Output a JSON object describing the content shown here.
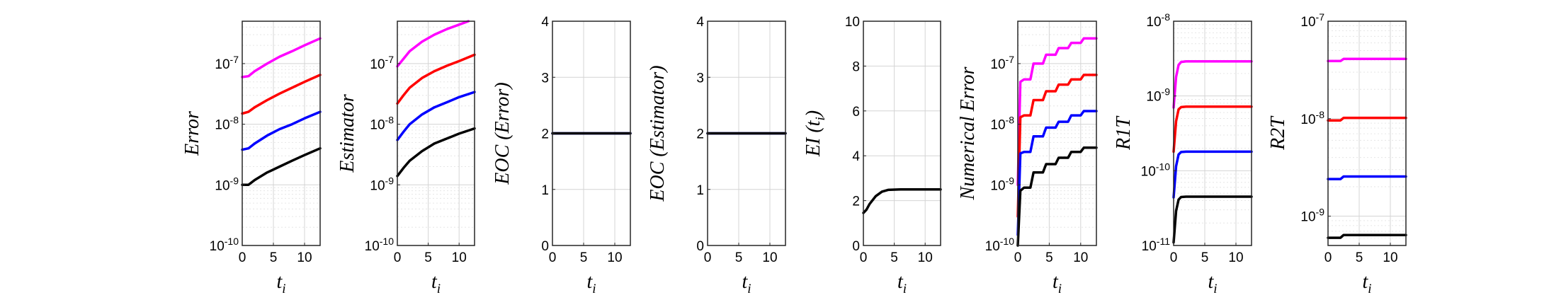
{
  "colors": {
    "magenta": "#ff00ff",
    "red": "#ff0000",
    "blue": "#0000ff",
    "black": "#000000"
  },
  "chart_data": [
    {
      "type": "line",
      "title": "",
      "xlabel": "t_i",
      "ylabel": "Error",
      "yscale": "log",
      "xlim": [
        0,
        12.5
      ],
      "ylim": [
        1e-10,
        5e-07
      ],
      "xticks": [
        0,
        5,
        10
      ],
      "xtick_labels": [
        "0",
        "5",
        "10"
      ],
      "yticks": [
        1e-10,
        1e-09,
        1e-08,
        1e-07
      ],
      "ytick_labels": [
        "10^-10",
        "10^-9",
        "10^-8",
        "10^-7"
      ],
      "grid": true,
      "series": [
        {
          "color": "magenta",
          "x": [
            0,
            1,
            2,
            4,
            6,
            8,
            10,
            12.5
          ],
          "values": [
            6e-08,
            6.2e-08,
            7.5e-08,
            1e-07,
            1.3e-07,
            1.6e-07,
            2e-07,
            2.6e-07
          ]
        },
        {
          "color": "red",
          "x": [
            0,
            1,
            2,
            4,
            6,
            8,
            10,
            12.5
          ],
          "values": [
            1.5e-08,
            1.6e-08,
            1.9e-08,
            2.5e-08,
            3.2e-08,
            4e-08,
            5e-08,
            6.5e-08
          ]
        },
        {
          "color": "blue",
          "x": [
            0,
            1,
            2,
            4,
            6,
            8,
            10,
            12.5
          ],
          "values": [
            3.8e-09,
            4e-09,
            4.8e-09,
            6.5e-09,
            8.3e-09,
            1e-08,
            1.25e-08,
            1.6e-08
          ]
        },
        {
          "color": "black",
          "x": [
            0,
            1,
            2,
            4,
            6,
            8,
            10,
            12.5
          ],
          "values": [
            1e-09,
            1e-09,
            1.2e-09,
            1.6e-09,
            2e-09,
            2.5e-09,
            3.1e-09,
            4e-09
          ]
        }
      ]
    },
    {
      "type": "line",
      "title": "",
      "xlabel": "t_i",
      "ylabel": "Estimator",
      "yscale": "log",
      "xlim": [
        0,
        12.5
      ],
      "ylim": [
        1e-10,
        5e-07
      ],
      "xticks": [
        0,
        5,
        10
      ],
      "xtick_labels": [
        "0",
        "5",
        "10"
      ],
      "yticks": [
        1e-10,
        1e-09,
        1e-08,
        1e-07
      ],
      "ytick_labels": [
        "10^-10",
        "10^-9",
        "10^-8",
        "10^-7"
      ],
      "grid": true,
      "series": [
        {
          "color": "magenta",
          "x": [
            0,
            1,
            2,
            4,
            6,
            8,
            10,
            11.5
          ],
          "values": [
            9e-08,
            1.2e-07,
            1.6e-07,
            2.3e-07,
            3e-07,
            3.7e-07,
            4.4e-07,
            5e-07
          ]
        },
        {
          "color": "red",
          "x": [
            0,
            1,
            2,
            4,
            6,
            8,
            10,
            12.5
          ],
          "values": [
            2.2e-08,
            3e-08,
            4e-08,
            5.8e-08,
            7.5e-08,
            9.2e-08,
            1.1e-07,
            1.4e-07
          ]
        },
        {
          "color": "blue",
          "x": [
            0,
            1,
            2,
            4,
            6,
            8,
            10,
            12.5
          ],
          "values": [
            5.5e-09,
            7.5e-09,
            1e-08,
            1.45e-08,
            1.9e-08,
            2.3e-08,
            2.8e-08,
            3.4e-08
          ]
        },
        {
          "color": "black",
          "x": [
            0,
            1,
            2,
            4,
            6,
            8,
            10,
            12.5
          ],
          "values": [
            1.4e-09,
            1.9e-09,
            2.5e-09,
            3.6e-09,
            4.8e-09,
            5.8e-09,
            7e-09,
            8.5e-09
          ]
        }
      ]
    },
    {
      "type": "line",
      "title": "",
      "xlabel": "t_i",
      "ylabel": "EOC (Error)",
      "yscale": "linear",
      "xlim": [
        0,
        12.5
      ],
      "ylim": [
        0,
        4
      ],
      "xticks": [
        0,
        5,
        10
      ],
      "xtick_labels": [
        "0",
        "5",
        "10"
      ],
      "yticks": [
        0,
        1,
        2,
        3,
        4
      ],
      "ytick_labels": [
        "0",
        "1",
        "2",
        "3",
        "4"
      ],
      "grid": true,
      "series": [
        {
          "color": "blue",
          "x": [
            0,
            12.5
          ],
          "values": [
            2,
            2
          ]
        },
        {
          "color": "black",
          "x": [
            0,
            12.5
          ],
          "values": [
            2,
            2
          ]
        }
      ]
    },
    {
      "type": "line",
      "title": "",
      "xlabel": "t_i",
      "ylabel": "EOC (Estimator)",
      "yscale": "linear",
      "xlim": [
        0,
        12.5
      ],
      "ylim": [
        0,
        4
      ],
      "xticks": [
        0,
        5,
        10
      ],
      "xtick_labels": [
        "0",
        "5",
        "10"
      ],
      "yticks": [
        0,
        1,
        2,
        3,
        4
      ],
      "ytick_labels": [
        "0",
        "1",
        "2",
        "3",
        "4"
      ],
      "grid": true,
      "series": [
        {
          "color": "blue",
          "x": [
            0,
            12.5
          ],
          "values": [
            2,
            2
          ]
        },
        {
          "color": "black",
          "x": [
            0,
            12.5
          ],
          "values": [
            2,
            2
          ]
        }
      ]
    },
    {
      "type": "line",
      "title": "",
      "xlabel": "t_i",
      "ylabel": "EI (t_i)",
      "yscale": "linear",
      "xlim": [
        0,
        12.5
      ],
      "ylim": [
        0,
        10
      ],
      "xticks": [
        0,
        5,
        10
      ],
      "xtick_labels": [
        "0",
        "5",
        "10"
      ],
      "yticks": [
        0,
        2,
        4,
        6,
        8,
        10
      ],
      "ytick_labels": [
        "0",
        "2",
        "4",
        "6",
        "8",
        "10"
      ],
      "grid": true,
      "series": [
        {
          "color": "black",
          "x": [
            0,
            0.5,
            1,
            2,
            3,
            4,
            6,
            8,
            10,
            12.5
          ],
          "values": [
            1.45,
            1.6,
            1.85,
            2.2,
            2.4,
            2.48,
            2.5,
            2.5,
            2.5,
            2.5
          ]
        }
      ]
    },
    {
      "type": "line",
      "title": "",
      "xlabel": "t_i",
      "ylabel": "Numerical Error",
      "yscale": "log",
      "xlim": [
        0,
        12.5
      ],
      "ylim": [
        1e-10,
        5e-07
      ],
      "xticks": [
        0,
        5,
        10
      ],
      "xtick_labels": [
        "0",
        "5",
        "10"
      ],
      "yticks": [
        1e-10,
        1e-09,
        1e-08,
        1e-07
      ],
      "ytick_labels": [
        "10^-10",
        "10^-9",
        "10^-8",
        "10^-7"
      ],
      "grid": true,
      "series": [
        {
          "color": "magenta",
          "x": [
            0,
            0.4,
            1,
            2,
            2.5,
            4,
            4.5,
            6,
            6.5,
            8,
            8.5,
            10,
            10.5,
            12.5
          ],
          "values": [
            1e-09,
            5e-08,
            5.5e-08,
            5.5e-08,
            1e-07,
            1e-07,
            1.4e-07,
            1.4e-07,
            1.8e-07,
            1.8e-07,
            2.2e-07,
            2.2e-07,
            2.6e-07,
            2.6e-07
          ]
        },
        {
          "color": "red",
          "x": [
            0,
            0.4,
            1,
            2,
            2.5,
            4,
            4.5,
            6,
            6.5,
            8,
            8.5,
            10,
            10.5,
            12.5
          ],
          "values": [
            3e-10,
            1.3e-08,
            1.4e-08,
            1.4e-08,
            2.5e-08,
            2.5e-08,
            3.5e-08,
            3.5e-08,
            4.5e-08,
            4.5e-08,
            5.5e-08,
            5.5e-08,
            6.5e-08,
            6.5e-08
          ]
        },
        {
          "color": "blue",
          "x": [
            0,
            0.4,
            1,
            2,
            2.5,
            4,
            4.5,
            6,
            6.5,
            8,
            8.5,
            10,
            10.5,
            12.5
          ],
          "values": [
            1.5e-10,
            3.3e-09,
            3.5e-09,
            3.5e-09,
            6.3e-09,
            6.3e-09,
            8.8e-09,
            8.8e-09,
            1.1e-08,
            1.1e-08,
            1.4e-08,
            1.4e-08,
            1.65e-08,
            1.65e-08
          ]
        },
        {
          "color": "black",
          "x": [
            0,
            0.4,
            1,
            2,
            2.5,
            4,
            4.5,
            6,
            6.5,
            8,
            8.5,
            10,
            10.5,
            12.5
          ],
          "values": [
            1e-10,
            8e-10,
            9e-10,
            9e-10,
            1.6e-09,
            1.6e-09,
            2.2e-09,
            2.2e-09,
            2.8e-09,
            2.8e-09,
            3.5e-09,
            3.5e-09,
            4.1e-09,
            4.1e-09
          ]
        }
      ]
    },
    {
      "type": "line",
      "title": "",
      "xlabel": "t_i",
      "ylabel": "R1T",
      "yscale": "log",
      "xlim": [
        0,
        12.5
      ],
      "ylim": [
        1e-11,
        1e-08
      ],
      "xticks": [
        0,
        5,
        10
      ],
      "xtick_labels": [
        "0",
        "5",
        "10"
      ],
      "yticks": [
        1e-11,
        1e-10,
        1e-09,
        1e-08
      ],
      "ytick_labels": [
        "10^-11",
        "10^-10",
        "10^-9",
        "10^-8"
      ],
      "grid": true,
      "series": [
        {
          "color": "magenta",
          "x": [
            0,
            0.4,
            0.8,
            1.2,
            2,
            12.5
          ],
          "values": [
            7e-10,
            1.8e-09,
            2.6e-09,
            2.85e-09,
            2.9e-09,
            2.9e-09
          ]
        },
        {
          "color": "red",
          "x": [
            0,
            0.4,
            0.8,
            1.2,
            2,
            12.5
          ],
          "values": [
            1.8e-10,
            4.6e-10,
            6.6e-10,
            7.1e-10,
            7.2e-10,
            7.2e-10
          ]
        },
        {
          "color": "blue",
          "x": [
            0,
            0.4,
            0.8,
            1.2,
            2,
            12.5
          ],
          "values": [
            4.4e-11,
            1.15e-10,
            1.65e-10,
            1.78e-10,
            1.8e-10,
            1.8e-10
          ]
        },
        {
          "color": "black",
          "x": [
            0,
            0.4,
            0.8,
            1.2,
            2,
            12.5
          ],
          "values": [
            1.1e-11,
            2.9e-11,
            4.1e-11,
            4.45e-11,
            4.5e-11,
            4.5e-11
          ]
        }
      ]
    },
    {
      "type": "line",
      "title": "",
      "xlabel": "t_i",
      "ylabel": "R2T",
      "yscale": "log",
      "xlim": [
        0,
        12.5
      ],
      "ylim": [
        5e-10,
        1e-07
      ],
      "xticks": [
        0,
        5,
        10
      ],
      "xtick_labels": [
        "0",
        "5",
        "10"
      ],
      "yticks": [
        1e-09,
        1e-08,
        1e-07
      ],
      "ytick_labels": [
        "10^-9",
        "10^-8",
        "10^-7"
      ],
      "grid": true,
      "series": [
        {
          "color": "magenta",
          "x": [
            0,
            2,
            2.5,
            12.5
          ],
          "values": [
            3.9e-08,
            3.9e-08,
            4.1e-08,
            4.1e-08
          ]
        },
        {
          "color": "red",
          "x": [
            0,
            2,
            2.5,
            12.5
          ],
          "values": [
            9.6e-09,
            9.6e-09,
            1.02e-08,
            1.02e-08
          ]
        },
        {
          "color": "blue",
          "x": [
            0,
            2,
            2.5,
            12.5
          ],
          "values": [
            2.4e-09,
            2.4e-09,
            2.55e-09,
            2.55e-09
          ]
        },
        {
          "color": "black",
          "x": [
            0,
            2,
            2.5,
            12.5
          ],
          "values": [
            6e-10,
            6e-10,
            6.4e-10,
            6.4e-10
          ]
        }
      ]
    }
  ]
}
